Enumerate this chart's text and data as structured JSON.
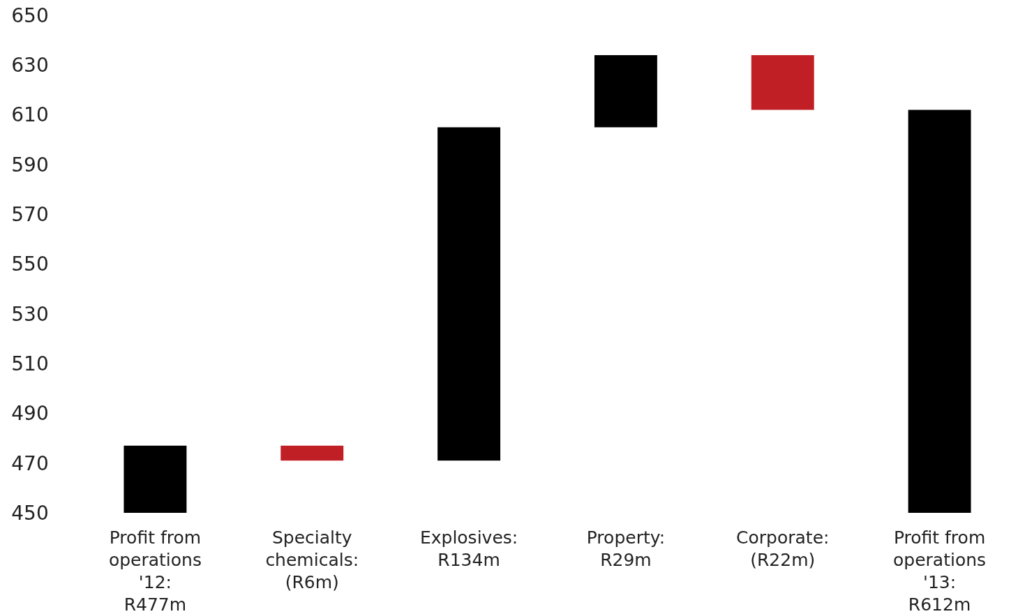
{
  "chart_data": {
    "type": "bar",
    "categories": [
      "Profit from operations '12: R477m",
      "Specialty chemicals: (R6m)",
      "Explosives: R134m",
      "Property: R29m",
      "Corporate: (R22m)",
      "Profit from operations '13: R612m"
    ],
    "base": [
      450,
      477,
      471,
      605,
      634,
      450
    ],
    "values": [
      27,
      -6,
      134,
      29,
      -22,
      162
    ],
    "colors": [
      "#000000",
      "#c01f26",
      "#000000",
      "#000000",
      "#c01f26",
      "#000000"
    ],
    "ylim": [
      450,
      650
    ],
    "yticks": [
      450,
      470,
      490,
      510,
      530,
      550,
      570,
      590,
      610,
      630,
      650
    ],
    "grid": false
  }
}
